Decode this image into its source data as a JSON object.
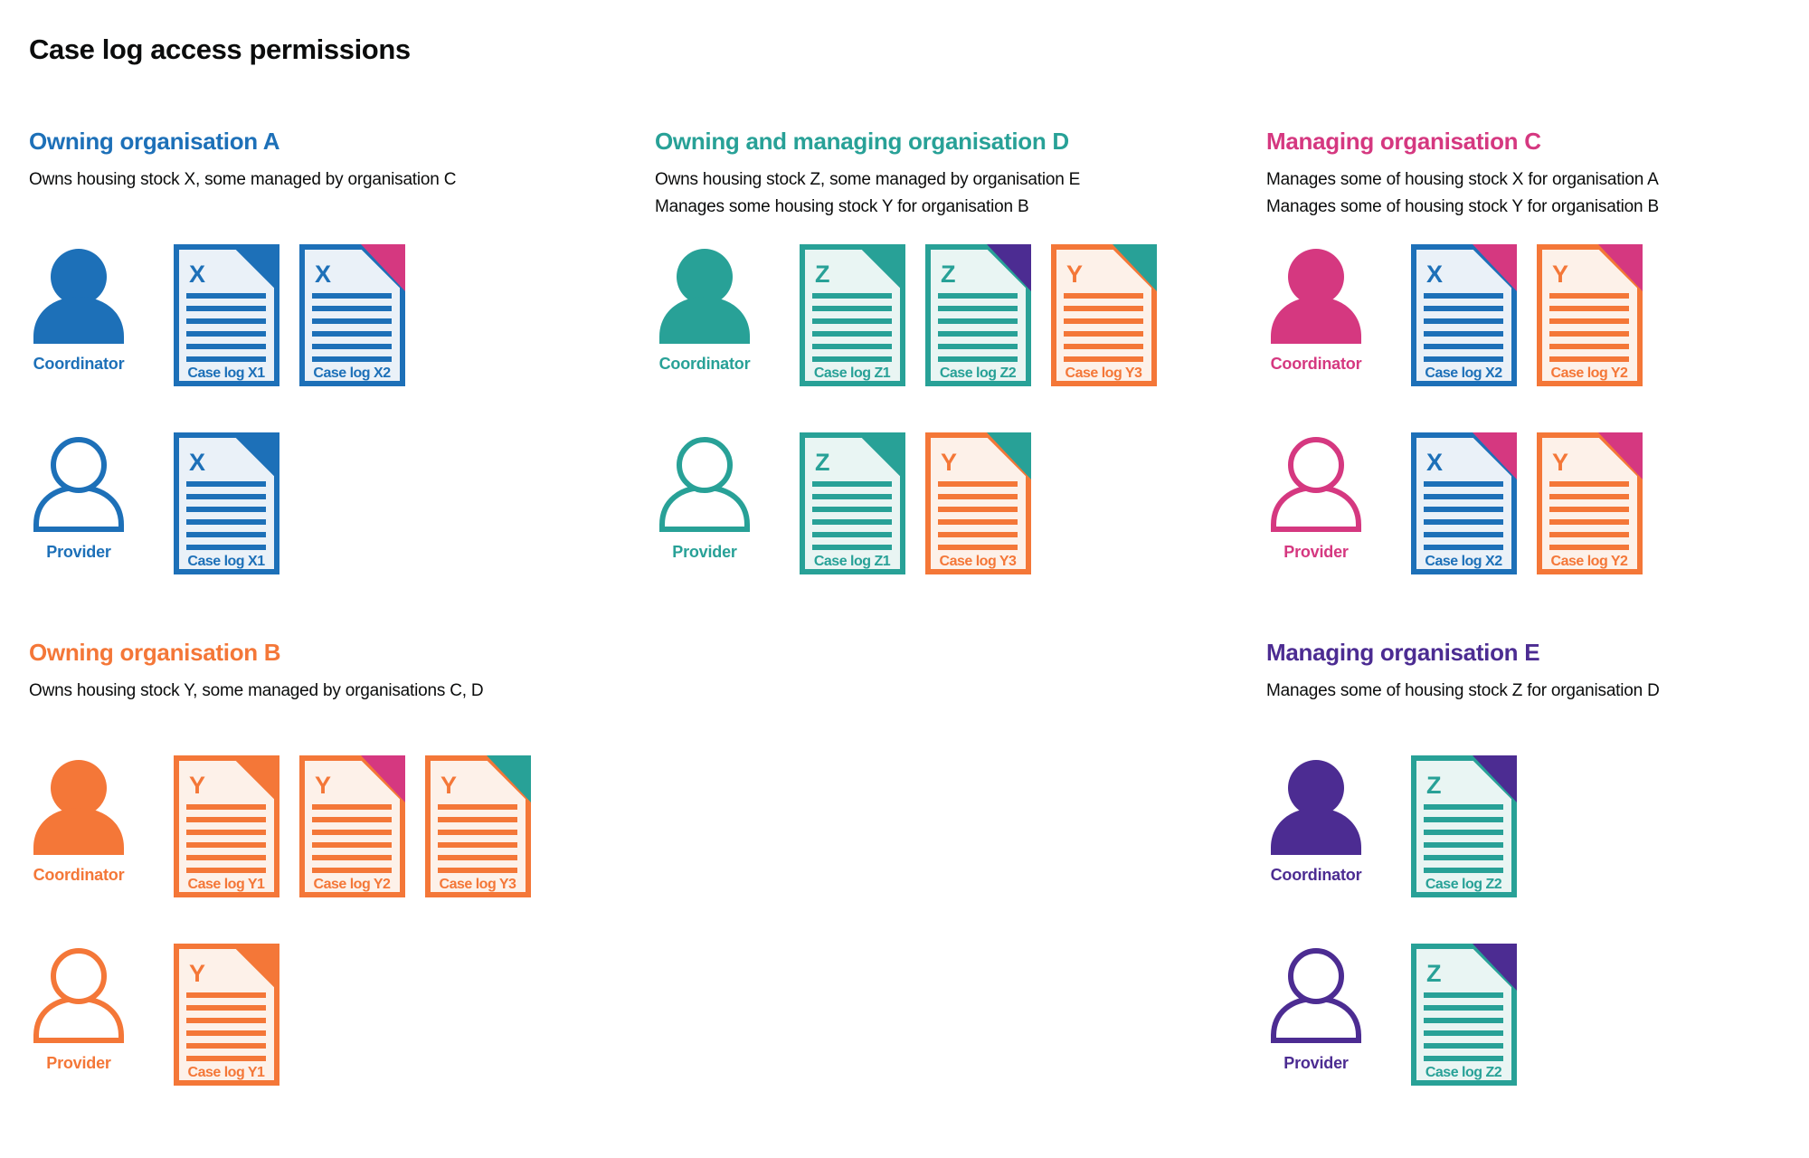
{
  "title": "Case log access permissions",
  "palette": {
    "blue": "#1d70b8",
    "teal": "#28a197",
    "pink": "#d53880",
    "orange": "#f47738",
    "purple": "#4c2c92",
    "text": "#0b0c0c",
    "blue_tint": "#eaf1f8",
    "teal_tint": "#e9f5f3",
    "orange_tint": "#fdf1e9",
    "purple_tint": "#ece8f4"
  },
  "person_labels": {
    "coordinator": "Coordinator",
    "provider": "Provider"
  },
  "sections": [
    {
      "id": "org-a",
      "heading": "Owning organisation A",
      "color": "blue",
      "description": [
        "Owns housing stock X, some managed by organisation C"
      ],
      "coordinator_docs": [
        {
          "letter": "X",
          "label": "Case log X1",
          "color": "blue",
          "fold": "blue"
        },
        {
          "letter": "X",
          "label": "Case log X2",
          "color": "blue",
          "fold": "pink"
        }
      ],
      "provider_docs": [
        {
          "letter": "X",
          "label": "Case log X1",
          "color": "blue",
          "fold": "blue"
        }
      ]
    },
    {
      "id": "org-d",
      "heading": "Owning and managing organisation D",
      "color": "teal",
      "description": [
        "Owns housing stock Z, some managed by organisation E",
        "Manages some housing stock Y for organisation B"
      ],
      "coordinator_docs": [
        {
          "letter": "Z",
          "label": "Case log Z1",
          "color": "teal",
          "fold": "teal"
        },
        {
          "letter": "Z",
          "label": "Case log Z2",
          "color": "teal",
          "fold": "purple"
        },
        {
          "letter": "Y",
          "label": "Case log Y3",
          "color": "orange",
          "fold": "teal"
        }
      ],
      "provider_docs": [
        {
          "letter": "Z",
          "label": "Case log Z1",
          "color": "teal",
          "fold": "teal"
        },
        {
          "letter": "Y",
          "label": "Case log Y3",
          "color": "orange",
          "fold": "teal"
        }
      ]
    },
    {
      "id": "org-c",
      "heading": "Managing organisation C",
      "color": "pink",
      "description": [
        "Manages some of housing stock X for organisation A",
        "Manages some of housing stock Y for organisation B"
      ],
      "coordinator_docs": [
        {
          "letter": "X",
          "label": "Case log X2",
          "color": "blue",
          "fold": "pink"
        },
        {
          "letter": "Y",
          "label": "Case log Y2",
          "color": "orange",
          "fold": "pink"
        }
      ],
      "provider_docs": [
        {
          "letter": "X",
          "label": "Case log X2",
          "color": "blue",
          "fold": "pink"
        },
        {
          "letter": "Y",
          "label": "Case log Y2",
          "color": "orange",
          "fold": "pink"
        }
      ]
    },
    {
      "id": "org-b",
      "heading": "Owning organisation B",
      "color": "orange",
      "description": [
        "Owns housing stock Y, some managed by organisations C, D"
      ],
      "coordinator_docs": [
        {
          "letter": "Y",
          "label": "Case log Y1",
          "color": "orange",
          "fold": "orange"
        },
        {
          "letter": "Y",
          "label": "Case log Y2",
          "color": "orange",
          "fold": "pink"
        },
        {
          "letter": "Y",
          "label": "Case log Y3",
          "color": "orange",
          "fold": "teal"
        }
      ],
      "provider_docs": [
        {
          "letter": "Y",
          "label": "Case log Y1",
          "color": "orange",
          "fold": "orange"
        }
      ]
    },
    {
      "id": "org-e",
      "heading": "Managing organisation E",
      "color": "purple",
      "description": [
        "Manages some of housing stock Z for organisation D"
      ],
      "coordinator_docs": [
        {
          "letter": "Z",
          "label": "Case log Z2",
          "color": "teal",
          "fold": "purple"
        }
      ],
      "provider_docs": [
        {
          "letter": "Z",
          "label": "Case log Z2",
          "color": "teal",
          "fold": "purple"
        }
      ]
    }
  ]
}
